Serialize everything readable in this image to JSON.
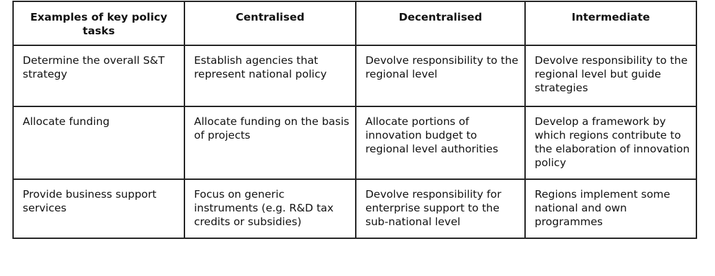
{
  "table": {
    "headers": [
      "Examples of key policy tasks",
      "Centralised",
      "Decentralised",
      "Intermediate"
    ],
    "rows": [
      [
        "Determine the overall S&T strategy",
        "Establish agencies that represent national policy",
        "Devolve responsibility to the regional level",
        "Devolve responsibility to the regional level but guide strategies"
      ],
      [
        "Allocate funding",
        "Allocate funding on the basis of projects",
        "Allocate portions of innovation budget to regional level authorities",
        "Develop a framework by which regions contribute to the elaboration of innovation policy"
      ],
      [
        "Provide business support services",
        "Focus on generic instruments (e.g. R&D tax credits or subsidies)",
        "Devolve responsibility for enterprise support to the sub-national level",
        "Regions implement some national and own programmes"
      ]
    ]
  }
}
